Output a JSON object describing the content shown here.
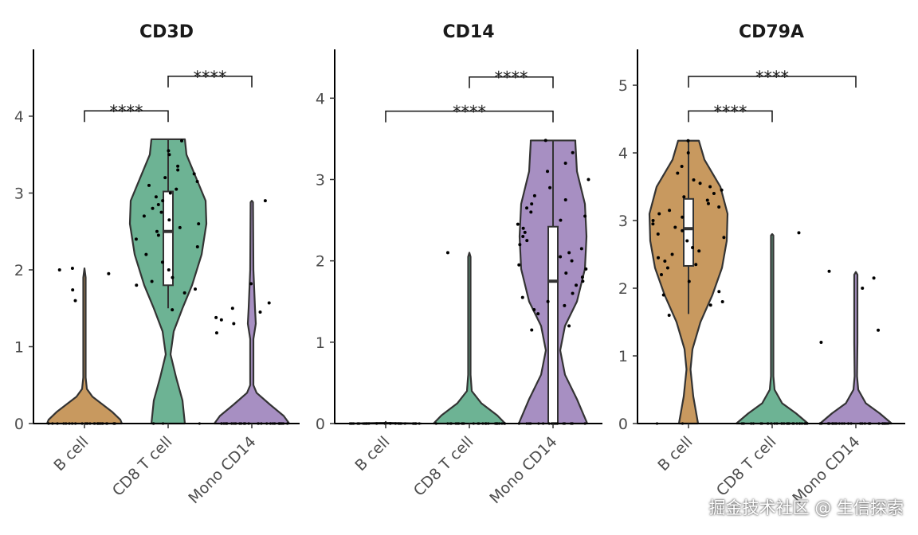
{
  "chart_data": [
    {
      "type": "violin",
      "title": "CD3D",
      "categories": [
        "B cell",
        "CD8 T cell",
        "Mono CD14"
      ],
      "colors": [
        "#C8995F",
        "#6DB394",
        "#A78FC2"
      ],
      "ylim": [
        0,
        4.87
      ],
      "yticks": [
        0,
        1,
        2,
        3,
        4
      ],
      "violins": [
        {
          "profile": [
            [
              0,
              0.94
            ],
            [
              0.05,
              0.9
            ],
            [
              0.15,
              0.7
            ],
            [
              0.25,
              0.45
            ],
            [
              0.35,
              0.2
            ],
            [
              0.45,
              0.06
            ],
            [
              0.6,
              0.03
            ],
            [
              1.9,
              0.03
            ],
            [
              2.02,
              0
            ]
          ],
          "zeros": 30,
          "points": [
            1.6,
            1.74,
            1.95,
            2.02,
            2.0
          ],
          "box": null
        },
        {
          "profile": [
            [
              0,
              0.42
            ],
            [
              0.3,
              0.36
            ],
            [
              0.6,
              0.2
            ],
            [
              0.9,
              0.06
            ],
            [
              1.2,
              0.14
            ],
            [
              1.5,
              0.36
            ],
            [
              1.8,
              0.6
            ],
            [
              2.2,
              0.84
            ],
            [
              2.6,
              0.96
            ],
            [
              2.9,
              0.94
            ],
            [
              3.2,
              0.7
            ],
            [
              3.5,
              0.46
            ],
            [
              3.7,
              0.42
            ]
          ],
          "zeros": 4,
          "points": [
            1.48,
            1.7,
            1.75,
            1.8,
            1.85,
            1.9,
            2.0,
            2.1,
            2.2,
            2.3,
            2.4,
            2.45,
            2.5,
            2.55,
            2.6,
            2.65,
            2.7,
            2.75,
            2.8,
            2.85,
            2.9,
            2.95,
            3.0,
            3.05,
            3.1,
            3.15,
            3.2,
            3.25,
            3.3,
            3.35,
            3.5,
            3.55,
            3.68
          ],
          "box": {
            "q1": 1.8,
            "median": 2.5,
            "q3": 3.02,
            "lo": 1.5,
            "hi": 3.7
          }
        },
        {
          "profile": [
            [
              0,
              0.94
            ],
            [
              0.1,
              0.8
            ],
            [
              0.25,
              0.45
            ],
            [
              0.4,
              0.12
            ],
            [
              0.5,
              0.04
            ],
            [
              1.1,
              0.04
            ],
            [
              1.3,
              0.1
            ],
            [
              1.5,
              0.08
            ],
            [
              2.0,
              0.04
            ],
            [
              2.88,
              0.03
            ],
            [
              2.9,
              0
            ]
          ],
          "zeros": 30,
          "points": [
            1.18,
            1.3,
            1.35,
            1.38,
            1.45,
            1.5,
            1.57,
            1.82,
            2.9
          ],
          "box": null
        }
      ],
      "comparisons": [
        {
          "from": 0,
          "to": 1,
          "y": 4.07,
          "label": "****"
        },
        {
          "from": 1,
          "to": 2,
          "y": 4.52,
          "label": "****"
        }
      ]
    },
    {
      "type": "violin",
      "title": "CD14",
      "categories": [
        "B cell",
        "CD8 T cell",
        "Mono CD14"
      ],
      "colors": [
        "#C8995F",
        "#6DB394",
        "#A78FC2"
      ],
      "ylim": [
        0,
        4.6
      ],
      "yticks": [
        0,
        1,
        2,
        3,
        4
      ],
      "violins": [
        {
          "profile": [
            [
              0,
              0.9
            ],
            [
              0.01,
              0.01
            ],
            [
              0.02,
              0
            ]
          ],
          "zeros": 30,
          "points": [],
          "box": null
        },
        {
          "profile": [
            [
              0,
              0.9
            ],
            [
              0.1,
              0.7
            ],
            [
              0.25,
              0.3
            ],
            [
              0.4,
              0.06
            ],
            [
              0.6,
              0.03
            ],
            [
              2.05,
              0.03
            ],
            [
              2.1,
              0
            ]
          ],
          "zeros": 30,
          "points": [
            2.1
          ],
          "box": null
        },
        {
          "profile": [
            [
              0,
              0.86
            ],
            [
              0.3,
              0.6
            ],
            [
              0.6,
              0.3
            ],
            [
              0.9,
              0.18
            ],
            [
              1.2,
              0.3
            ],
            [
              1.5,
              0.6
            ],
            [
              1.9,
              0.8
            ],
            [
              2.3,
              0.84
            ],
            [
              2.7,
              0.8
            ],
            [
              3.1,
              0.6
            ],
            [
              3.46,
              0.56
            ],
            [
              3.48,
              0.56
            ]
          ],
          "zeros": 20,
          "points": [
            1.15,
            1.2,
            1.35,
            1.4,
            1.45,
            1.5,
            1.55,
            1.6,
            1.7,
            1.75,
            1.8,
            1.85,
            1.9,
            1.95,
            2.0,
            2.05,
            2.1,
            2.15,
            2.2,
            2.25,
            2.3,
            2.35,
            2.4,
            2.45,
            2.5,
            2.55,
            2.6,
            2.65,
            2.7,
            2.75,
            2.8,
            2.9,
            3.0,
            3.1,
            3.2,
            3.33,
            3.48
          ],
          "box": {
            "q1": 0,
            "median": 1.75,
            "q3": 2.42,
            "lo": 0,
            "hi": 3.48
          }
        }
      ],
      "comparisons": [
        {
          "from": 0,
          "to": 2,
          "y": 3.84,
          "label": "****"
        },
        {
          "from": 1,
          "to": 2,
          "y": 4.26,
          "label": "****"
        }
      ]
    },
    {
      "type": "violin",
      "title": "CD79A",
      "categories": [
        "B cell",
        "CD8 T cell",
        "Mono CD14"
      ],
      "colors": [
        "#C8995F",
        "#6DB394",
        "#A78FC2"
      ],
      "ylim": [
        0,
        5.53
      ],
      "yticks": [
        0,
        1,
        2,
        3,
        4,
        5
      ],
      "violins": [
        {
          "profile": [
            [
              0,
              0.24
            ],
            [
              0.4,
              0.12
            ],
            [
              0.8,
              0.05
            ],
            [
              1.1,
              0.1
            ],
            [
              1.5,
              0.3
            ],
            [
              1.9,
              0.6
            ],
            [
              2.3,
              0.84
            ],
            [
              2.7,
              0.96
            ],
            [
              3.1,
              0.98
            ],
            [
              3.5,
              0.8
            ],
            [
              3.9,
              0.4
            ],
            [
              4.18,
              0.26
            ]
          ],
          "zeros": 2,
          "points": [
            1.6,
            1.75,
            1.8,
            1.9,
            1.95,
            2.1,
            2.2,
            2.3,
            2.35,
            2.4,
            2.45,
            2.5,
            2.55,
            2.6,
            2.7,
            2.75,
            2.8,
            2.85,
            2.9,
            2.95,
            3.0,
            3.05,
            3.1,
            3.15,
            3.2,
            3.25,
            3.3,
            3.35,
            3.4,
            3.45,
            3.5,
            3.55,
            3.6,
            3.7,
            3.8,
            4.0,
            4.18
          ],
          "box": {
            "q1": 2.33,
            "median": 2.88,
            "q3": 3.32,
            "lo": 1.62,
            "hi": 4.18
          }
        },
        {
          "profile": [
            [
              0,
              0.9
            ],
            [
              0.15,
              0.6
            ],
            [
              0.3,
              0.25
            ],
            [
              0.5,
              0.06
            ],
            [
              0.7,
              0.03
            ],
            [
              2.78,
              0.03
            ],
            [
              2.8,
              0
            ]
          ],
          "zeros": 30,
          "points": [
            2.82
          ],
          "box": null
        },
        {
          "profile": [
            [
              0,
              0.9
            ],
            [
              0.15,
              0.6
            ],
            [
              0.3,
              0.25
            ],
            [
              0.5,
              0.06
            ],
            [
              0.7,
              0.03
            ],
            [
              1.2,
              0.04
            ],
            [
              2.2,
              0.04
            ],
            [
              2.24,
              0
            ]
          ],
          "zeros": 30,
          "points": [
            1.2,
            1.38,
            2.0,
            2.15,
            2.25
          ],
          "box": null
        }
      ],
      "comparisons": [
        {
          "from": 0,
          "to": 1,
          "y": 4.62,
          "label": "****"
        },
        {
          "from": 0,
          "to": 2,
          "y": 5.13,
          "label": "****"
        }
      ]
    }
  ],
  "watermark": "掘金技术社区 @ 生信探索"
}
